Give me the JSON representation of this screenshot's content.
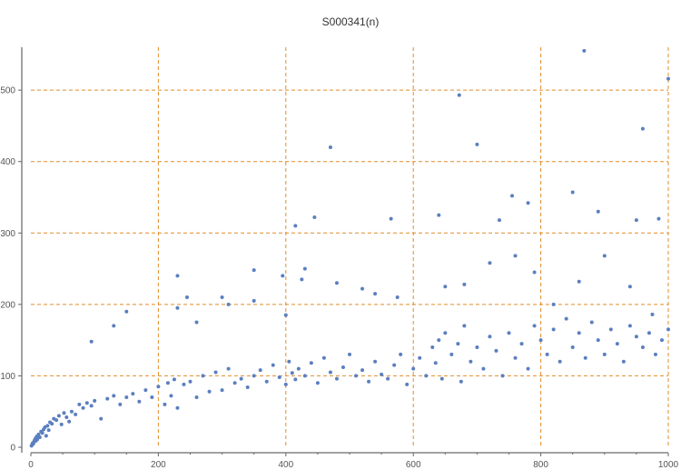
{
  "chart_data": {
    "type": "scatter",
    "title": "S000341(n)",
    "xlabel": "",
    "ylabel": "",
    "xlim": [
      0,
      1000
    ],
    "ylim": [
      0,
      560
    ],
    "grid": true,
    "xticks": [
      0,
      200,
      400,
      600,
      800,
      1000
    ],
    "yticks": [
      0,
      100,
      200,
      300,
      400,
      500
    ],
    "colors": {
      "points": "#5b7fbf",
      "grid": "#e08c2a",
      "axis": "#444444"
    },
    "series": [
      {
        "values_x": [
          1,
          2,
          3,
          4,
          5,
          6,
          7,
          8,
          9,
          10,
          12,
          14,
          16,
          18,
          20,
          22,
          24,
          26,
          28,
          30,
          33,
          36,
          40,
          44,
          48,
          52,
          56,
          60,
          64,
          70,
          76,
          82,
          88,
          95,
          100,
          110,
          120,
          130,
          140,
          150,
          160,
          170,
          180,
          190,
          200,
          210,
          215,
          220,
          225,
          230,
          240,
          250,
          260,
          270,
          280,
          290,
          300,
          310,
          320,
          330,
          340,
          350,
          360,
          370,
          380,
          390,
          400,
          405,
          410,
          415,
          420,
          430,
          440,
          450,
          460,
          470,
          480,
          490,
          500,
          510,
          520,
          530,
          540,
          550,
          560,
          570,
          580,
          590,
          600,
          610,
          620,
          630,
          635,
          640,
          645,
          650,
          660,
          670,
          675,
          680,
          690,
          700,
          710,
          720,
          730,
          740,
          750,
          760,
          770,
          780,
          790,
          800,
          810,
          820,
          830,
          840,
          850,
          860,
          870,
          880,
          890,
          900,
          910,
          920,
          930,
          940,
          950,
          960,
          970,
          980,
          990,
          1000,
          95,
          130,
          150,
          230,
          245,
          300,
          350,
          395,
          415,
          430,
          445,
          470,
          520,
          565,
          640,
          672,
          700,
          735,
          755,
          780,
          850,
          868,
          890,
          950,
          960,
          985,
          1000,
          230,
          260,
          310,
          350,
          400,
          425,
          480,
          540,
          575,
          650,
          680,
          720,
          760,
          790,
          820,
          860,
          900,
          940,
          975
        ],
        "values_y": [
          2,
          4,
          6,
          5,
          8,
          10,
          12,
          9,
          15,
          11,
          18,
          14,
          22,
          20,
          25,
          28,
          16,
          30,
          24,
          35,
          33,
          40,
          38,
          44,
          32,
          48,
          42,
          36,
          50,
          46,
          60,
          55,
          62,
          58,
          65,
          40,
          68,
          72,
          60,
          70,
          75,
          64,
          80,
          70,
          85,
          60,
          90,
          72,
          95,
          55,
          88,
          92,
          70,
          100,
          78,
          105,
          80,
          110,
          90,
          96,
          84,
          100,
          108,
          92,
          115,
          98,
          88,
          120,
          104,
          95,
          110,
          100,
          118,
          90,
          125,
          105,
          96,
          112,
          130,
          100,
          108,
          92,
          120,
          102,
          96,
          115,
          130,
          88,
          110,
          125,
          100,
          140,
          118,
          150,
          96,
          160,
          130,
          145,
          92,
          170,
          120,
          140,
          110,
          155,
          135,
          100,
          160,
          125,
          145,
          110,
          170,
          150,
          130,
          165,
          120,
          180,
          140,
          160,
          125,
          175,
          150,
          130,
          165,
          145,
          120,
          170,
          155,
          140,
          160,
          130,
          150,
          165,
          148,
          170,
          190,
          240,
          210,
          210,
          248,
          240,
          310,
          250,
          322,
          420,
          222,
          320,
          325,
          493,
          424,
          318,
          352,
          342,
          357,
          555,
          330,
          318,
          446,
          320,
          516,
          195,
          175,
          200,
          205,
          185,
          235,
          230,
          215,
          210,
          225,
          228,
          258,
          268,
          245,
          200,
          232,
          268,
          225,
          186
        ],
        "name": ""
      }
    ]
  }
}
